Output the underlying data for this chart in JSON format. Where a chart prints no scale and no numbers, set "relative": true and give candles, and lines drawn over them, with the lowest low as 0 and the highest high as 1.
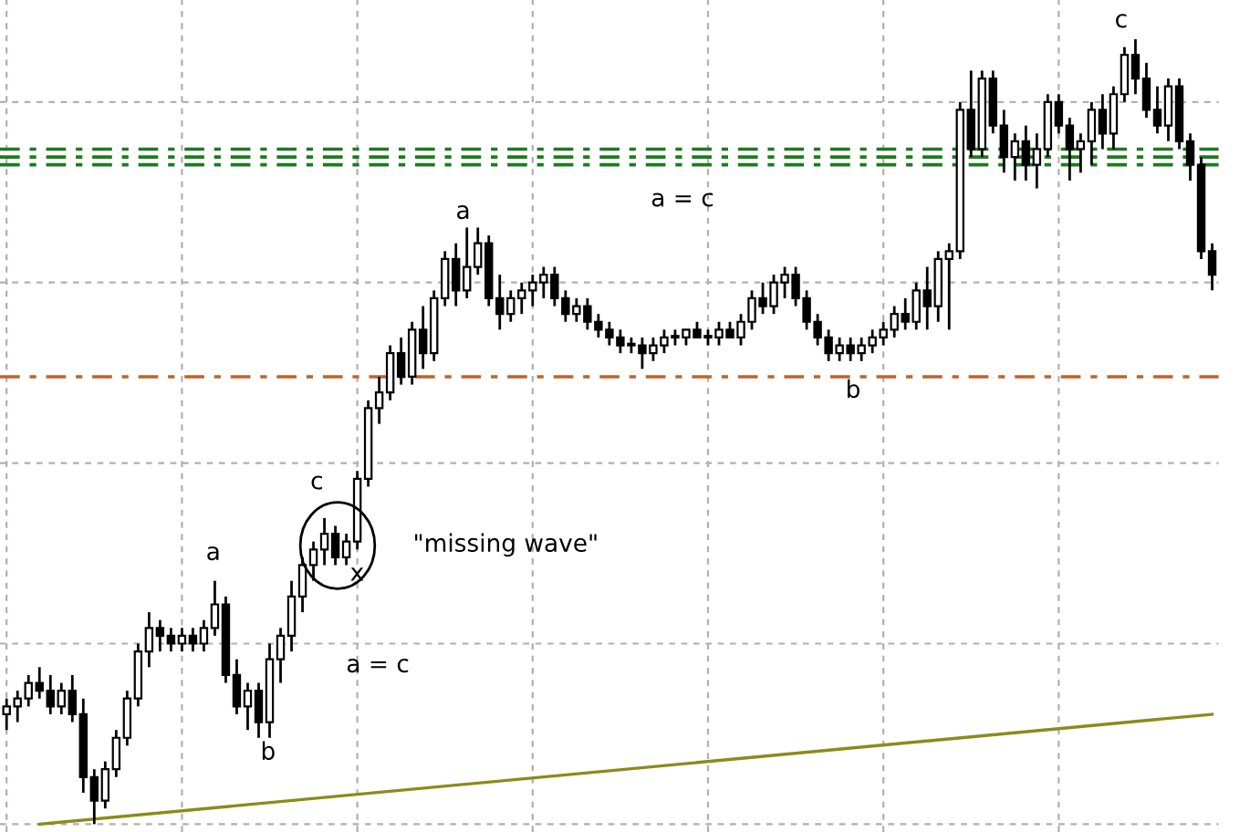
{
  "chart_data": {
    "type": "candlestick",
    "relative": true,
    "grid": true,
    "categories": [
      null,
      null,
      null,
      null,
      null,
      null,
      null,
      null,
      null,
      null,
      null,
      null,
      null,
      null,
      null,
      null,
      null,
      null,
      null,
      null,
      null,
      null,
      null,
      null,
      null,
      null,
      null,
      null,
      null,
      null,
      null,
      null,
      null,
      null,
      null,
      null,
      null,
      null,
      null,
      null,
      null,
      null,
      null,
      null,
      null,
      null,
      null,
      null,
      null,
      null,
      null,
      null,
      null,
      null,
      null,
      null,
      null,
      null,
      null,
      null,
      null,
      null,
      null,
      null,
      null,
      null,
      null,
      null,
      null,
      null,
      null,
      null,
      null,
      null,
      null,
      null,
      null,
      null,
      null,
      null,
      null,
      null,
      null,
      null,
      null,
      null,
      null,
      null,
      null,
      null,
      null,
      null,
      null,
      null,
      null,
      null,
      null,
      null,
      null,
      null,
      null,
      null,
      null,
      null,
      null,
      null,
      null,
      null,
      null,
      null,
      null
    ],
    "ohlc": [
      [
        0.14,
        0.16,
        0.12,
        0.15
      ],
      [
        0.15,
        0.17,
        0.13,
        0.16
      ],
      [
        0.16,
        0.19,
        0.15,
        0.18
      ],
      [
        0.18,
        0.2,
        0.16,
        0.17
      ],
      [
        0.17,
        0.19,
        0.14,
        0.15
      ],
      [
        0.15,
        0.18,
        0.14,
        0.17
      ],
      [
        0.17,
        0.19,
        0.13,
        0.14
      ],
      [
        0.14,
        0.16,
        0.04,
        0.06
      ],
      [
        0.06,
        0.07,
        0.0,
        0.03
      ],
      [
        0.03,
        0.08,
        0.02,
        0.07
      ],
      [
        0.07,
        0.12,
        0.06,
        0.11
      ],
      [
        0.11,
        0.17,
        0.1,
        0.16
      ],
      [
        0.16,
        0.23,
        0.15,
        0.22
      ],
      [
        0.22,
        0.27,
        0.2,
        0.25
      ],
      [
        0.25,
        0.26,
        0.22,
        0.24
      ],
      [
        0.24,
        0.25,
        0.22,
        0.23
      ],
      [
        0.23,
        0.25,
        0.22,
        0.24
      ],
      [
        0.24,
        0.25,
        0.22,
        0.23
      ],
      [
        0.23,
        0.26,
        0.22,
        0.25
      ],
      [
        0.25,
        0.31,
        0.24,
        0.28
      ],
      [
        0.28,
        0.29,
        0.18,
        0.19
      ],
      [
        0.19,
        0.21,
        0.14,
        0.15
      ],
      [
        0.15,
        0.18,
        0.12,
        0.17
      ],
      [
        0.17,
        0.18,
        0.11,
        0.13
      ],
      [
        0.13,
        0.23,
        0.11,
        0.21
      ],
      [
        0.21,
        0.25,
        0.18,
        0.24
      ],
      [
        0.24,
        0.31,
        0.22,
        0.29
      ],
      [
        0.29,
        0.34,
        0.27,
        0.33
      ],
      [
        0.33,
        0.36,
        0.31,
        0.35
      ],
      [
        0.35,
        0.39,
        0.33,
        0.37
      ],
      [
        0.37,
        0.38,
        0.33,
        0.34
      ],
      [
        0.34,
        0.37,
        0.33,
        0.36
      ],
      [
        0.36,
        0.45,
        0.35,
        0.44
      ],
      [
        0.44,
        0.54,
        0.43,
        0.53
      ],
      [
        0.53,
        0.57,
        0.51,
        0.55
      ],
      [
        0.55,
        0.61,
        0.54,
        0.6
      ],
      [
        0.6,
        0.62,
        0.56,
        0.57
      ],
      [
        0.57,
        0.64,
        0.56,
        0.63
      ],
      [
        0.63,
        0.66,
        0.58,
        0.6
      ],
      [
        0.6,
        0.68,
        0.59,
        0.67
      ],
      [
        0.67,
        0.73,
        0.66,
        0.72
      ],
      [
        0.72,
        0.74,
        0.66,
        0.68
      ],
      [
        0.68,
        0.76,
        0.67,
        0.71
      ],
      [
        0.71,
        0.76,
        0.7,
        0.74
      ],
      [
        0.74,
        0.75,
        0.66,
        0.67
      ],
      [
        0.67,
        0.7,
        0.63,
        0.65
      ],
      [
        0.65,
        0.68,
        0.64,
        0.67
      ],
      [
        0.67,
        0.69,
        0.65,
        0.68
      ],
      [
        0.68,
        0.7,
        0.66,
        0.69
      ],
      [
        0.69,
        0.71,
        0.67,
        0.7
      ],
      [
        0.7,
        0.71,
        0.66,
        0.67
      ],
      [
        0.67,
        0.68,
        0.64,
        0.65
      ],
      [
        0.65,
        0.67,
        0.64,
        0.66
      ],
      [
        0.66,
        0.67,
        0.63,
        0.64
      ],
      [
        0.64,
        0.65,
        0.62,
        0.63
      ],
      [
        0.63,
        0.64,
        0.61,
        0.62
      ],
      [
        0.62,
        0.63,
        0.6,
        0.61
      ],
      [
        0.61,
        0.62,
        0.6,
        0.61
      ],
      [
        0.61,
        0.62,
        0.58,
        0.6
      ],
      [
        0.6,
        0.62,
        0.59,
        0.61
      ],
      [
        0.61,
        0.63,
        0.6,
        0.62
      ],
      [
        0.62,
        0.63,
        0.61,
        0.62
      ],
      [
        0.62,
        0.63,
        0.61,
        0.63
      ],
      [
        0.63,
        0.64,
        0.62,
        0.62
      ],
      [
        0.62,
        0.63,
        0.61,
        0.62
      ],
      [
        0.62,
        0.64,
        0.61,
        0.63
      ],
      [
        0.63,
        0.64,
        0.62,
        0.62
      ],
      [
        0.62,
        0.65,
        0.61,
        0.64
      ],
      [
        0.64,
        0.68,
        0.63,
        0.67
      ],
      [
        0.67,
        0.69,
        0.65,
        0.66
      ],
      [
        0.66,
        0.7,
        0.65,
        0.69
      ],
      [
        0.69,
        0.71,
        0.67,
        0.7
      ],
      [
        0.7,
        0.71,
        0.66,
        0.67
      ],
      [
        0.67,
        0.68,
        0.63,
        0.64
      ],
      [
        0.64,
        0.65,
        0.61,
        0.62
      ],
      [
        0.62,
        0.63,
        0.59,
        0.6
      ],
      [
        0.6,
        0.62,
        0.59,
        0.61
      ],
      [
        0.61,
        0.62,
        0.59,
        0.6
      ],
      [
        0.6,
        0.62,
        0.59,
        0.61
      ],
      [
        0.61,
        0.63,
        0.6,
        0.62
      ],
      [
        0.62,
        0.64,
        0.61,
        0.63
      ],
      [
        0.63,
        0.66,
        0.62,
        0.65
      ],
      [
        0.65,
        0.67,
        0.63,
        0.64
      ],
      [
        0.64,
        0.69,
        0.63,
        0.68
      ],
      [
        0.68,
        0.71,
        0.63,
        0.66
      ],
      [
        0.66,
        0.73,
        0.64,
        0.72
      ],
      [
        0.72,
        0.74,
        0.63,
        0.73
      ],
      [
        0.73,
        0.92,
        0.72,
        0.91
      ],
      [
        0.91,
        0.96,
        0.85,
        0.86
      ],
      [
        0.86,
        0.96,
        0.85,
        0.95
      ],
      [
        0.95,
        0.96,
        0.88,
        0.89
      ],
      [
        0.89,
        0.91,
        0.83,
        0.85
      ],
      [
        0.85,
        0.88,
        0.82,
        0.87
      ],
      [
        0.87,
        0.89,
        0.82,
        0.84
      ],
      [
        0.84,
        0.88,
        0.81,
        0.86
      ],
      [
        0.86,
        0.93,
        0.85,
        0.92
      ],
      [
        0.92,
        0.93,
        0.88,
        0.89
      ],
      [
        0.89,
        0.9,
        0.82,
        0.86
      ],
      [
        0.86,
        0.88,
        0.83,
        0.87
      ],
      [
        0.87,
        0.92,
        0.84,
        0.91
      ],
      [
        0.91,
        0.93,
        0.86,
        0.88
      ],
      [
        0.88,
        0.94,
        0.86,
        0.93
      ],
      [
        0.93,
        0.99,
        0.92,
        0.98
      ],
      [
        0.98,
        1.0,
        0.93,
        0.95
      ],
      [
        0.95,
        0.97,
        0.9,
        0.91
      ],
      [
        0.91,
        0.94,
        0.88,
        0.89
      ],
      [
        0.89,
        0.95,
        0.87,
        0.94
      ],
      [
        0.94,
        0.95,
        0.86,
        0.87
      ],
      [
        0.87,
        0.88,
        0.82,
        0.84
      ],
      [
        0.84,
        0.85,
        0.72,
        0.73
      ],
      [
        0.73,
        0.74,
        0.68,
        0.7
      ]
    ],
    "series": [
      {
        "type": "line",
        "color": "#8b8b1a",
        "values": [
          null,
          null,
          null,
          0.0,
          null,
          null,
          null,
          null,
          null,
          null,
          null,
          null,
          null,
          null,
          null,
          null,
          null,
          null,
          null,
          null,
          null,
          null,
          null,
          null,
          null,
          null,
          null,
          null,
          null,
          null,
          null,
          null,
          null,
          null,
          null,
          null,
          null,
          null,
          null,
          null,
          null,
          null,
          null,
          null,
          null,
          null,
          null,
          null,
          null,
          null,
          null,
          null,
          null,
          null,
          null,
          null,
          null,
          null,
          null,
          null,
          null,
          null,
          null,
          null,
          null,
          null,
          null,
          null,
          null,
          null,
          null,
          null,
          null,
          null,
          null,
          null,
          null,
          null,
          null,
          null,
          null,
          null,
          null,
          null,
          null,
          null,
          null,
          null,
          null,
          null,
          null,
          null,
          null,
          null,
          null,
          null,
          null,
          null,
          null,
          null,
          null,
          null,
          null,
          null,
          null,
          null,
          null,
          null,
          null,
          null,
          0.14
        ]
      }
    ],
    "ref_lines": [
      {
        "axis": "y",
        "value": 0.57,
        "color": "#c0622a",
        "line_style": "dashed"
      },
      {
        "axis": "y",
        "value": 0.86,
        "color": "#1e7a1e",
        "line_style": "dashed"
      },
      {
        "axis": "y",
        "value": 0.85,
        "color": "#1e7a1e",
        "line_style": "dashed"
      },
      {
        "axis": "y",
        "value": 0.84,
        "color": "#1e7a1e",
        "line_style": "dashed"
      }
    ],
    "annotations": [
      "a",
      "b",
      "c",
      "x",
      "\"missing wave\"",
      "a = c",
      "a",
      "a = c",
      "b",
      "c"
    ]
  }
}
